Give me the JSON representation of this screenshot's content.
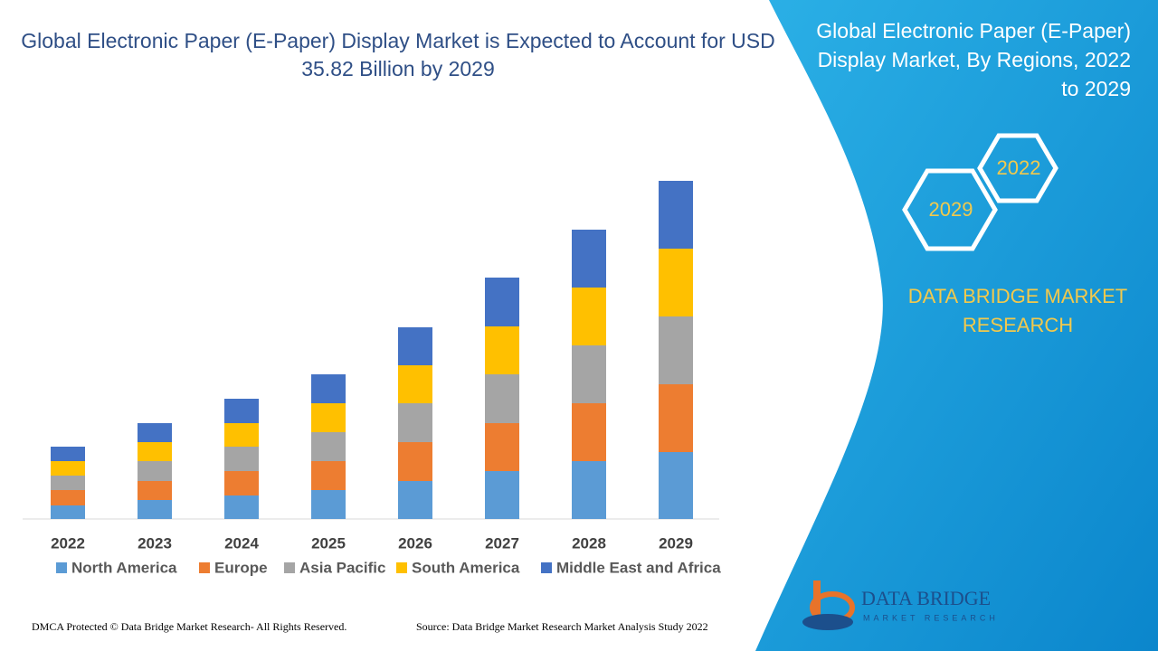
{
  "chart_data": {
    "type": "stacked-bar",
    "title": "Global Electronic Paper (E-Paper) Display Market is Expected to Account for USD 35.82 Billion by 2029",
    "categories": [
      "2022",
      "2023",
      "2024",
      "2025",
      "2026",
      "2027",
      "2028",
      "2029"
    ],
    "series": [
      {
        "name": "North America",
        "color": "#5b9bd5",
        "values": [
          15,
          21,
          26,
          32,
          42,
          53,
          64,
          74
        ]
      },
      {
        "name": "Europe",
        "color": "#ed7d31",
        "values": [
          17,
          21,
          27,
          32,
          43,
          53,
          64,
          75
        ]
      },
      {
        "name": "Asia Pacific",
        "color": "#a5a5a5",
        "values": [
          16,
          22,
          27,
          32,
          43,
          54,
          64,
          75
        ]
      },
      {
        "name": "South America",
        "color": "#ffc000",
        "values": [
          16,
          21,
          26,
          32,
          42,
          53,
          64,
          75
        ]
      },
      {
        "name": "Middle East and Africa",
        "color": "#4472c4",
        "values": [
          16,
          21,
          27,
          32,
          42,
          54,
          64,
          75
        ]
      }
    ],
    "ylim": [
      0,
      400
    ]
  },
  "panel": {
    "title": "Global Electronic Paper (E-Paper) Display Market, By Regions, 2022 to 2029",
    "hex_start": "2022",
    "hex_end": "2029",
    "brand": "DATA BRIDGE MARKET RESEARCH",
    "logo_name": "DATA BRIDGE",
    "logo_sub": "MARKET RESEARCH"
  },
  "footer": {
    "copyright": "DMCA Protected © Data Bridge Market Research- All Rights Reserved.",
    "source": "Source: Data Bridge Market Research Market Analysis Study 2022"
  }
}
